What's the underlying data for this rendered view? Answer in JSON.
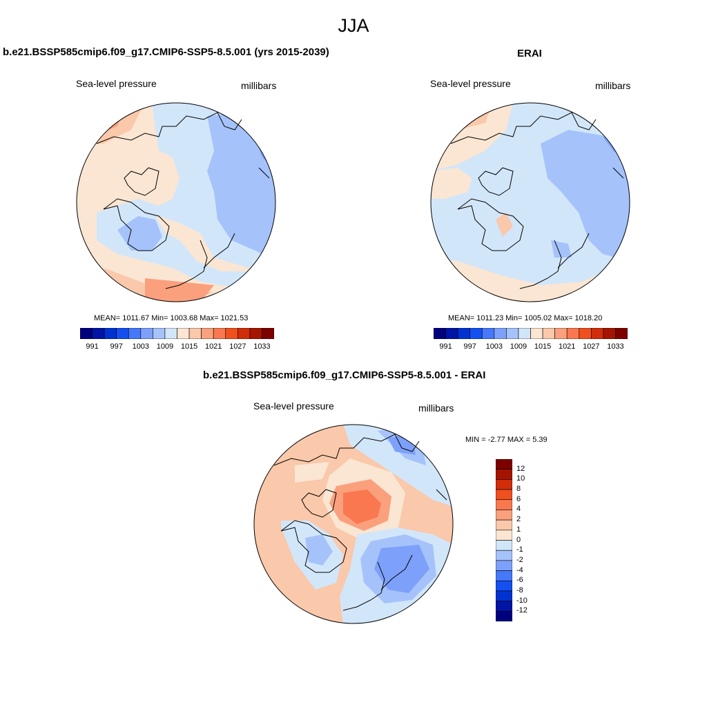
{
  "title": "JJA",
  "panels": [
    {
      "title": "b.e21.BSSP585cmip6.f09_g17.CMIP6-SSP5-8.5.001 (yrs 2015-2039)",
      "left_label": "Sea-level pressure",
      "right_label": "millibars",
      "stats": "MEAN= 1011.67  Min= 1003.68  Max= 1021.53"
    },
    {
      "title": "ERAI",
      "left_label": "Sea-level pressure",
      "right_label": "millibars",
      "stats": "MEAN= 1011.23  Min= 1005.02  Max= 1018.20"
    },
    {
      "title": "b.e21.BSSP585cmip6.f09_g17.CMIP6-SSP5-8.5.001 - ERAI",
      "left_label": "Sea-level pressure",
      "right_label": "millibars",
      "stats": "MIN =  -2.77 MAX =   5.39"
    }
  ],
  "colorbar_abs": {
    "colors": [
      "#00007f",
      "#0014a5",
      "#0032d2",
      "#1450f0",
      "#4678fa",
      "#7da0fa",
      "#a5c3fa",
      "#d2e6fa",
      "#fae6d2",
      "#fac8aa",
      "#faa07d",
      "#fa7850",
      "#f0501e",
      "#d22d0a",
      "#a51400",
      "#7d0000"
    ],
    "tick_labels": [
      "991",
      "997",
      "1003",
      "1009",
      "1015",
      "1021",
      "1027",
      "1033"
    ]
  },
  "colorbar_diff": {
    "colors": [
      "#7d0000",
      "#a51400",
      "#d22d0a",
      "#f0501e",
      "#fa7850",
      "#faa07d",
      "#fac8aa",
      "#fae6d2",
      "#d2e6fa",
      "#a5c3fa",
      "#7da0fa",
      "#4678fa",
      "#1450f0",
      "#0032d2",
      "#0014a5",
      "#00007f"
    ],
    "tick_labels": [
      "12",
      "10",
      "8",
      "6",
      "4",
      "2",
      "1",
      "0",
      "-1",
      "-2",
      "-4",
      "-6",
      "-8",
      "-10",
      "-12"
    ]
  },
  "palette": {
    "ocean_blue": "#d2e6fa",
    "light_orange": "#fae6d2",
    "mid_blue": "#a5c3fa",
    "deep_blue": "#7da0fa",
    "orange": "#fac8aa",
    "red_orange": "#faa07d",
    "hot": "#fa7850"
  }
}
